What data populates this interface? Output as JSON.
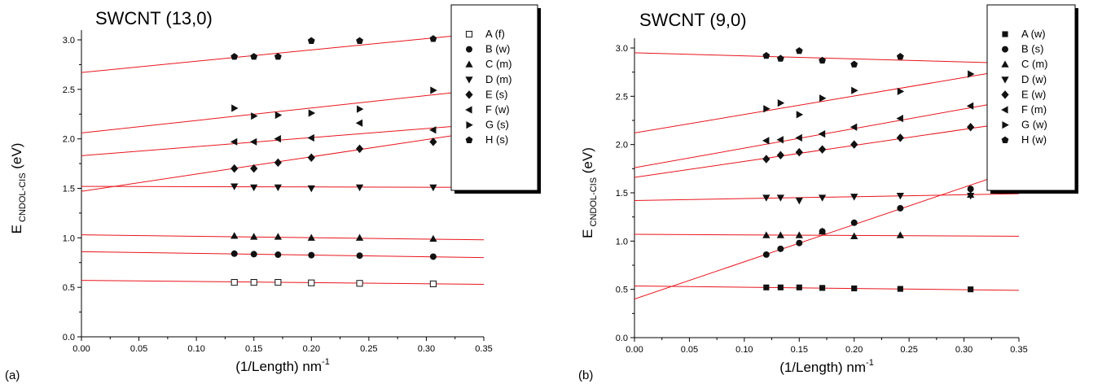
{
  "chart_data": [
    {
      "type": "scatter",
      "panel_label": "(a)",
      "title": "SWCNT (13,0)",
      "xlabel": "(1/Length) nm",
      "xlabel_superscript": "-1",
      "ylabel": "E",
      "ylabel_subscript": "CNDOL-CIS",
      "ylabel_unit": "(eV)",
      "xlim": [
        0.0,
        0.35
      ],
      "ylim": [
        0.0,
        3.0
      ],
      "xticks": [
        "0.00",
        "0.05",
        "0.10",
        "0.15",
        "0.20",
        "0.25",
        "0.30",
        "0.35"
      ],
      "yticks": [
        "0.0",
        "0.5",
        "1.0",
        "1.5",
        "2.0",
        "2.5",
        "3.0"
      ],
      "legend_position": "top-right",
      "series": [
        {
          "name": "A (f)",
          "marker": "square-open",
          "x": [
            0.133,
            0.15,
            0.171,
            0.2,
            0.242,
            0.306
          ],
          "y": [
            0.55,
            0.55,
            0.55,
            0.545,
            0.54,
            0.535
          ],
          "fit": [
            0.57,
            0.53
          ]
        },
        {
          "name": "B (w)",
          "marker": "circle",
          "x": [
            0.133,
            0.15,
            0.171,
            0.2,
            0.242,
            0.306
          ],
          "y": [
            0.84,
            0.835,
            0.83,
            0.825,
            0.82,
            0.81
          ],
          "fit": [
            0.86,
            0.8
          ]
        },
        {
          "name": "C (m)",
          "marker": "triangle-up",
          "x": [
            0.133,
            0.15,
            0.171,
            0.2,
            0.242,
            0.306
          ],
          "y": [
            1.02,
            1.01,
            1.01,
            1.0,
            1.0,
            0.99
          ],
          "fit": [
            1.03,
            0.98
          ]
        },
        {
          "name": "D (m)",
          "marker": "triangle-down",
          "x": [
            0.133,
            0.15,
            0.171,
            0.2,
            0.242,
            0.306
          ],
          "y": [
            1.52,
            1.51,
            1.51,
            1.5,
            1.51,
            1.51
          ],
          "fit": [
            1.52,
            1.51
          ]
        },
        {
          "name": "E (s)",
          "marker": "diamond",
          "x": [
            0.133,
            0.15,
            0.171,
            0.2,
            0.242,
            0.306
          ],
          "y": [
            1.7,
            1.7,
            1.76,
            1.81,
            1.9,
            1.97
          ],
          "fit": [
            1.47,
            2.08
          ]
        },
        {
          "name": "F (w)",
          "marker": "triangle-left",
          "x": [
            0.133,
            0.15,
            0.171,
            0.2,
            0.242,
            0.306
          ],
          "y": [
            1.97,
            1.97,
            2.0,
            2.01,
            2.16,
            2.09
          ],
          "fit": [
            1.83,
            2.15
          ]
        },
        {
          "name": "G (s)",
          "marker": "triangle-right",
          "x": [
            0.133,
            0.15,
            0.171,
            0.2,
            0.242,
            0.306
          ],
          "y": [
            2.31,
            2.23,
            2.24,
            2.26,
            2.3,
            2.49
          ],
          "fit": [
            2.06,
            2.5
          ]
        },
        {
          "name": "H (s)",
          "marker": "pentagon",
          "x": [
            0.133,
            0.15,
            0.171,
            0.2,
            0.242,
            0.306
          ],
          "y": [
            2.83,
            2.83,
            2.83,
            2.99,
            2.99,
            3.01
          ],
          "fit": [
            2.67,
            3.07
          ]
        }
      ]
    },
    {
      "type": "scatter",
      "panel_label": "(b)",
      "title": "SWCNT (9,0)",
      "xlabel": "(1/Length) nm",
      "xlabel_superscript": "-1",
      "ylabel": "E",
      "ylabel_subscript": "CNDOL-CIS",
      "ylabel_unit": "(eV)",
      "xlim": [
        0.0,
        0.35
      ],
      "ylim": [
        0.0,
        3.0
      ],
      "xticks": [
        "0.00",
        "0.05",
        "0.10",
        "0.15",
        "0.20",
        "0.25",
        "0.30",
        "0.35"
      ],
      "yticks": [
        "0.0",
        "0.5",
        "1.0",
        "1.5",
        "2.0",
        "2.5",
        "3.0"
      ],
      "legend_position": "top-right",
      "series": [
        {
          "name": "A (w)",
          "marker": "square",
          "x": [
            0.12,
            0.133,
            0.15,
            0.171,
            0.2,
            0.242,
            0.306
          ],
          "y": [
            0.52,
            0.52,
            0.52,
            0.515,
            0.51,
            0.505,
            0.5
          ],
          "fit": [
            0.535,
            0.49
          ]
        },
        {
          "name": "B (s)",
          "marker": "circle",
          "x": [
            0.12,
            0.133,
            0.15,
            0.171,
            0.2,
            0.242,
            0.306
          ],
          "y": [
            0.86,
            0.92,
            0.98,
            1.1,
            1.19,
            1.34,
            1.54
          ],
          "fit": [
            0.4,
            1.75
          ]
        },
        {
          "name": "C (m)",
          "marker": "triangle-up",
          "x": [
            0.12,
            0.133,
            0.15,
            0.171,
            0.2,
            0.242,
            0.306
          ],
          "y": [
            1.06,
            1.06,
            1.06,
            1.1,
            1.05,
            1.06,
            1.48
          ],
          "fit": [
            1.07,
            1.05
          ]
        },
        {
          "name": "D (w)",
          "marker": "triangle-down",
          "x": [
            0.12,
            0.133,
            0.15,
            0.171,
            0.2,
            0.242,
            0.306
          ],
          "y": [
            1.45,
            1.45,
            1.42,
            1.45,
            1.46,
            1.47,
            1.47
          ],
          "fit": [
            1.42,
            1.49
          ]
        },
        {
          "name": "E (w)",
          "marker": "diamond",
          "x": [
            0.12,
            0.133,
            0.15,
            0.171,
            0.2,
            0.242,
            0.306
          ],
          "y": [
            1.85,
            1.89,
            1.92,
            1.95,
            2.0,
            2.07,
            2.18
          ],
          "fit": [
            1.66,
            2.24
          ]
        },
        {
          "name": "F (m)",
          "marker": "triangle-left",
          "x": [
            0.12,
            0.133,
            0.15,
            0.171,
            0.2,
            0.242,
            0.306
          ],
          "y": [
            2.04,
            2.05,
            2.07,
            2.11,
            2.18,
            2.27,
            2.4
          ],
          "fit": [
            1.76,
            2.47
          ]
        },
        {
          "name": "G (w)",
          "marker": "triangle-right",
          "x": [
            0.12,
            0.133,
            0.15,
            0.171,
            0.2,
            0.242,
            0.306
          ],
          "y": [
            2.37,
            2.43,
            2.31,
            2.48,
            2.56,
            2.55,
            2.73
          ],
          "fit": [
            2.12,
            2.79
          ]
        },
        {
          "name": "H (w)",
          "marker": "pentagon",
          "x": [
            0.12,
            0.133,
            0.15,
            0.171,
            0.2,
            0.242
          ],
          "y": [
            2.92,
            2.89,
            2.97,
            2.87,
            2.83,
            2.91
          ],
          "fit": [
            2.95,
            2.84
          ]
        }
      ]
    }
  ],
  "colors": {
    "fit_line": "#e8141c",
    "marker": "#111111",
    "axis": "#000000"
  }
}
